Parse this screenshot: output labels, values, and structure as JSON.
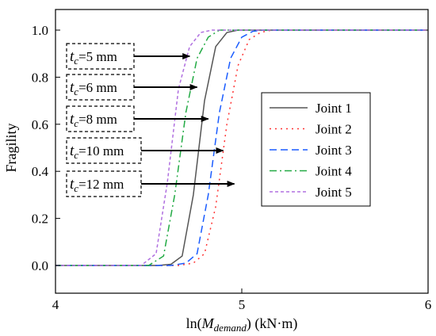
{
  "chart_data": {
    "type": "line",
    "xlabel": {
      "prefix": "ln(",
      "sym": "M",
      "sub": "demand",
      "suffix": ") (kN·m)"
    },
    "ylabel": "Fragility",
    "xlim": [
      4,
      6
    ],
    "ylim": [
      0,
      1.0
    ],
    "xticks": [
      "4",
      "5",
      "6"
    ],
    "yticks": [
      "0.0",
      "0.2",
      "0.4",
      "0.6",
      "0.8",
      "1.0"
    ],
    "grid": false,
    "legend_position": "right",
    "series": [
      {
        "name": "Joint 1",
        "color": "#555555",
        "dash": "solid",
        "x": [
          4.0,
          4.55,
          4.62,
          4.68,
          4.74,
          4.8,
          4.86,
          4.92,
          4.98,
          5.05,
          6.0
        ],
        "y": [
          0.0,
          0.0,
          0.005,
          0.04,
          0.3,
          0.7,
          0.93,
          0.99,
          1.0,
          1.0,
          1.0
        ]
      },
      {
        "name": "Joint 2",
        "color": "#ff3333",
        "dash": "dot",
        "x": [
          4.0,
          4.66,
          4.74,
          4.8,
          4.86,
          4.92,
          4.98,
          5.04,
          5.1,
          5.16,
          6.0
        ],
        "y": [
          0.0,
          0.0,
          0.01,
          0.05,
          0.25,
          0.6,
          0.85,
          0.96,
          0.99,
          1.0,
          1.0
        ]
      },
      {
        "name": "Joint 3",
        "color": "#1a5cff",
        "dash": "dash",
        "x": [
          4.0,
          4.62,
          4.7,
          4.76,
          4.82,
          4.88,
          4.94,
          5.0,
          5.06,
          5.12,
          6.0
        ],
        "y": [
          0.0,
          0.0,
          0.01,
          0.05,
          0.3,
          0.65,
          0.88,
          0.97,
          0.995,
          1.0,
          1.0
        ]
      },
      {
        "name": "Joint 4",
        "color": "#22aa44",
        "dash": "dashdot",
        "x": [
          4.0,
          4.5,
          4.58,
          4.64,
          4.7,
          4.76,
          4.82,
          4.88,
          6.0
        ],
        "y": [
          0.0,
          0.0,
          0.04,
          0.3,
          0.65,
          0.88,
          0.97,
          1.0,
          1.0
        ]
      },
      {
        "name": "Joint 5",
        "color": "#b070e0",
        "dash": "shortdash",
        "x": [
          4.0,
          4.46,
          4.54,
          4.6,
          4.66,
          4.72,
          4.78,
          4.84,
          6.0
        ],
        "y": [
          0.0,
          0.0,
          0.05,
          0.35,
          0.75,
          0.93,
          0.99,
          1.0,
          1.0
        ]
      }
    ],
    "annotations": [
      {
        "sym": "t",
        "sub": "c",
        "text": "=5 mm",
        "arrow_to": [
          4.72,
          0.89
        ]
      },
      {
        "sym": "t",
        "sub": "c",
        "text": "=6 mm",
        "arrow_to": [
          4.76,
          0.76
        ]
      },
      {
        "sym": "t",
        "sub": "c",
        "text": "=8 mm",
        "arrow_to": [
          4.82,
          0.62
        ]
      },
      {
        "sym": "t",
        "sub": "c",
        "text": "=10 mm",
        "arrow_to": [
          4.9,
          0.48
        ]
      },
      {
        "sym": "t",
        "sub": "c",
        "text": "=12 mm",
        "arrow_to": [
          4.96,
          0.34
        ]
      }
    ]
  }
}
